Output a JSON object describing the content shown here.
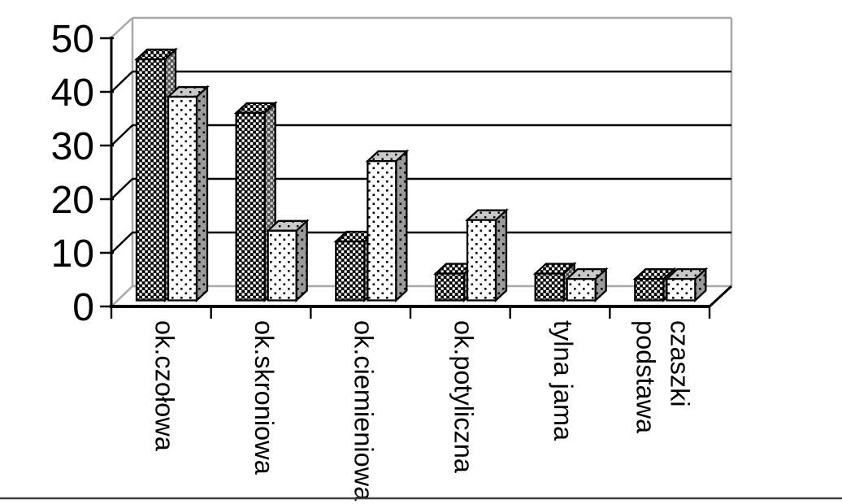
{
  "page": {
    "background": "#ffffff",
    "bottom_rule_color": "#3f3f46"
  },
  "chart_data": {
    "type": "bar",
    "variant": "3d-clustered-column",
    "title": "",
    "xlabel": "",
    "ylabel": "",
    "categories": [
      "ok.czołowa",
      "ok.skroniowa",
      "ok.ciemieniowa",
      "ok.potyliczna",
      "tylna jama",
      "podstawa czaszki"
    ],
    "category_label_lines": [
      [
        "ok.czołowa"
      ],
      [
        "ok.skroniowa"
      ],
      [
        "ok.ciemieniowa"
      ],
      [
        "ok.potyliczna"
      ],
      [
        "tylna jama"
      ],
      [
        "podstawa",
        "czaszki"
      ]
    ],
    "series": [
      {
        "name": "series-1-dark-checker",
        "pattern": "checker",
        "values": [
          45,
          35,
          11,
          5,
          5,
          4
        ]
      },
      {
        "name": "series-2-light-dotted",
        "pattern": "dots",
        "values": [
          38,
          13,
          26,
          15,
          4,
          4
        ]
      }
    ],
    "ylim": [
      0,
      50
    ],
    "yticks": [
      0,
      10,
      20,
      30,
      40,
      50
    ],
    "grid": true,
    "legend": false,
    "colors": {
      "background": "#ffffff",
      "bar_outline": "#000000",
      "dark_fill": "#000000",
      "dark_dot": "#ffffff",
      "dark_side_fill": "#4d4d4d",
      "dark_side_dot": "#cfcfcf",
      "light_fill": "#ffffff",
      "light_dot": "#000000",
      "light_side_fill": "#9b9b9b",
      "light_top_fill": "#c9c9c9",
      "wall_edge": "#a8a8a8",
      "grid_line": "#000000",
      "axis_line": "#000000",
      "text": "#000000"
    }
  }
}
